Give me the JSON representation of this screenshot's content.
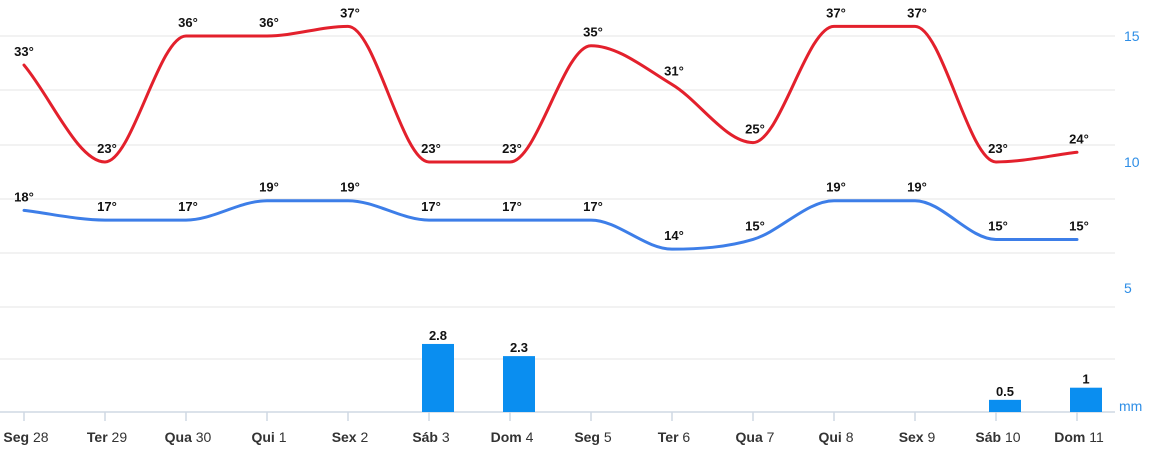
{
  "chart_data": {
    "type": "line",
    "categories": [
      {
        "weekday": "Seg",
        "day": "28"
      },
      {
        "weekday": "Ter",
        "day": "29"
      },
      {
        "weekday": "Qua",
        "day": "30"
      },
      {
        "weekday": "Qui",
        "day": "1"
      },
      {
        "weekday": "Sex",
        "day": "2"
      },
      {
        "weekday": "Sáb",
        "day": "3"
      },
      {
        "weekday": "Dom",
        "day": "4"
      },
      {
        "weekday": "Seg",
        "day": "5"
      },
      {
        "weekday": "Ter",
        "day": "6"
      },
      {
        "weekday": "Qua",
        "day": "7"
      },
      {
        "weekday": "Qui",
        "day": "8"
      },
      {
        "weekday": "Sex",
        "day": "9"
      },
      {
        "weekday": "Sáb",
        "day": "10"
      },
      {
        "weekday": "Dom",
        "day": "11"
      }
    ],
    "series": [
      {
        "kind": "line",
        "color": "#e3202c",
        "values": [
          33,
          23,
          36,
          36,
          37,
          23,
          23,
          35,
          31,
          25,
          37,
          37,
          23,
          24
        ],
        "labels": [
          "33°",
          "23°",
          "36°",
          "36°",
          "37°",
          "23°",
          "23°",
          "35°",
          "31°",
          "25°",
          "37°",
          "37°",
          "23°",
          "24°"
        ]
      },
      {
        "kind": "line",
        "color": "#3d7ee8",
        "values": [
          18,
          17,
          17,
          19,
          19,
          17,
          17,
          17,
          14,
          15,
          19,
          19,
          15,
          15
        ],
        "labels": [
          "18°",
          "17°",
          "17°",
          "19°",
          "19°",
          "17°",
          "17°",
          "17°",
          "14°",
          "15°",
          "19°",
          "19°",
          "15°",
          "15°"
        ]
      },
      {
        "kind": "bar",
        "color": "#0a8ef0",
        "values": [
          0,
          0,
          0,
          0,
          0,
          2.8,
          2.3,
          0,
          0,
          0,
          0,
          0,
          0.5,
          1
        ],
        "labels": [
          "",
          "",
          "",
          "",
          "",
          "2.8",
          "2.3",
          "",
          "",
          "",
          "",
          "",
          "0.5",
          "1"
        ]
      }
    ],
    "y_axis_right": {
      "unit": "mm",
      "ticks": [
        "5",
        "10",
        "15"
      ],
      "range": [
        0,
        15
      ]
    },
    "grid": true
  }
}
